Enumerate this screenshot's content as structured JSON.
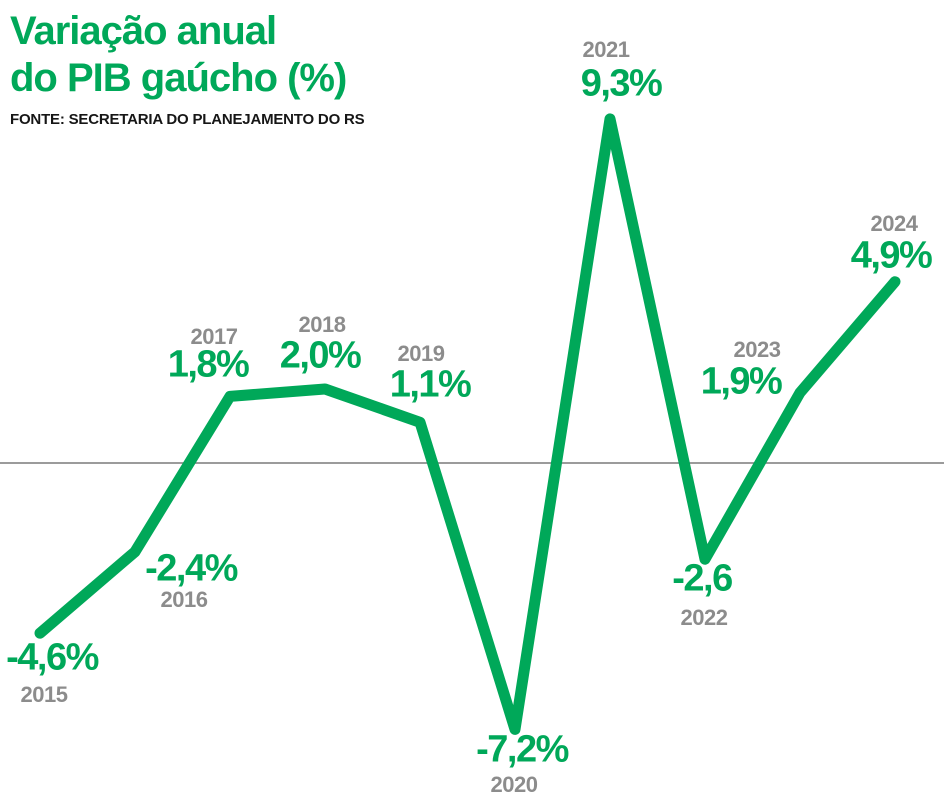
{
  "header": {
    "title_line1": "Variação anual",
    "title_line2": "do PIB gaúcho (%)",
    "source": "FONTE: SECRETARIA DO PLANEJAMENTO DO RS"
  },
  "colors": {
    "accent_green": "#00a859",
    "year_gray": "#8c8c8c",
    "axis_gray": "#7a7a7a",
    "source_text": "#161616"
  },
  "chart_data": {
    "type": "line",
    "title": "Variação anual do PIB gaúcho (%)",
    "source": "FONTE: SECRETARIA DO PLANEJAMENTO DO RS",
    "categories": [
      "2015",
      "2016",
      "2017",
      "2018",
      "2019",
      "2020",
      "2021",
      "2022",
      "2023",
      "2024"
    ],
    "values": [
      -4.6,
      -2.4,
      1.8,
      2.0,
      1.1,
      -7.2,
      9.3,
      -2.6,
      1.9,
      4.9
    ],
    "value_labels": [
      "-4,6%",
      "-2,4%",
      "1,8%",
      "2,0%",
      "1,1%",
      "-7,2%",
      "9,3%",
      "-2,6",
      "1,9%",
      "4,9%"
    ],
    "unit": "%",
    "baseline": 0,
    "ylim": [
      -9,
      11
    ],
    "grid": false,
    "legend_position": "none",
    "line_color": "#00a859",
    "baseline_color": "#7a7a7a"
  }
}
